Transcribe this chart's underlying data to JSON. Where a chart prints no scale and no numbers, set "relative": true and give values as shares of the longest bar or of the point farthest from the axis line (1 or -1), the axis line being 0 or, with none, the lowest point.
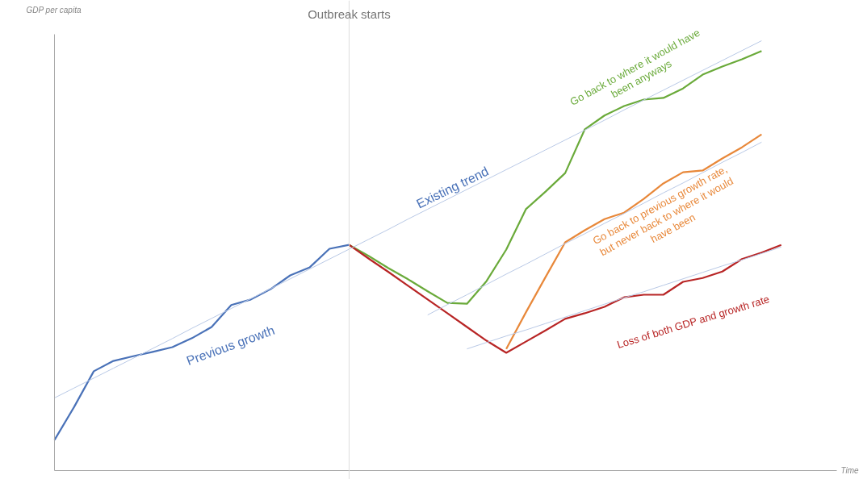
{
  "chart_data": {
    "type": "line",
    "relative": true,
    "xlabel": "Time",
    "ylabel": "GDP per capita",
    "grid": false,
    "marker": "none",
    "line_style": "solid",
    "categories": [
      null,
      null,
      null,
      null,
      null,
      null,
      null,
      null,
      null,
      null,
      null,
      null,
      null,
      null,
      null,
      null,
      null,
      null,
      null,
      null,
      null,
      null,
      null,
      null,
      null,
      null,
      null,
      null,
      null,
      null,
      null,
      null,
      null,
      null,
      null,
      null,
      null,
      null,
      null,
      null,
      null
    ],
    "series": [
      {
        "color": "#b9c9e6",
        "values": [
          0.169,
          0.192,
          0.215,
          0.238,
          0.261,
          0.284,
          0.307,
          0.331,
          0.354,
          0.377,
          0.4,
          0.423,
          0.446,
          0.469,
          0.492,
          0.515,
          0.538,
          0.561,
          0.585,
          0.608,
          0.631,
          0.654,
          0.677,
          0.7,
          0.723,
          0.746,
          0.769,
          0.792,
          0.815,
          0.839,
          0.862,
          0.885,
          0.908,
          0.931,
          0.954,
          0.977,
          1.0,
          null,
          null,
          null,
          null
        ]
      },
      {
        "color": "#b9c9e6",
        "values": [
          null,
          null,
          null,
          null,
          null,
          null,
          null,
          null,
          null,
          null,
          null,
          null,
          null,
          null,
          null,
          null,
          null,
          null,
          null,
          0.362,
          0.386,
          0.409,
          0.433,
          0.457,
          0.48,
          0.504,
          0.528,
          0.551,
          0.575,
          0.598,
          0.622,
          0.646,
          0.669,
          0.693,
          0.717,
          0.74,
          0.764,
          null,
          null,
          null,
          null
        ]
      },
      {
        "color": "#b9c9e6",
        "values": [
          null,
          null,
          null,
          null,
          null,
          null,
          null,
          null,
          null,
          null,
          null,
          null,
          null,
          null,
          null,
          null,
          null,
          null,
          null,
          null,
          null,
          0.283,
          0.298,
          0.313,
          0.327,
          0.342,
          0.357,
          0.372,
          0.387,
          0.402,
          0.416,
          0.431,
          0.446,
          0.461,
          0.476,
          0.49,
          0.505,
          0.52,
          null,
          null,
          null
        ]
      },
      {
        "color": "#4a72b8",
        "values": [
          0.071,
          0.148,
          0.231,
          0.255,
          0.266,
          0.276,
          0.287,
          0.308,
          0.334,
          0.385,
          0.398,
          0.422,
          0.454,
          0.473,
          0.516,
          0.525,
          null,
          null,
          null,
          null,
          null,
          null,
          null,
          null,
          null,
          null,
          null,
          null,
          null,
          null,
          null,
          null,
          null,
          null,
          null,
          null,
          null,
          null,
          null,
          null,
          null
        ]
      },
      {
        "color": "#6aaa3a",
        "values": [
          null,
          null,
          null,
          null,
          null,
          null,
          null,
          null,
          null,
          null,
          null,
          null,
          null,
          null,
          null,
          0.525,
          0.499,
          0.471,
          0.445,
          0.417,
          0.39,
          0.388,
          0.441,
          0.514,
          0.608,
          0.649,
          0.692,
          0.794,
          0.826,
          0.848,
          0.863,
          0.867,
          0.889,
          0.921,
          0.94,
          0.957,
          0.976,
          null,
          null,
          null,
          null
        ]
      },
      {
        "color": "#e8883a",
        "values": [
          null,
          null,
          null,
          null,
          null,
          null,
          null,
          null,
          null,
          null,
          null,
          null,
          null,
          null,
          null,
          null,
          null,
          null,
          null,
          null,
          null,
          null,
          null,
          0.283,
          0.368,
          0.45,
          0.531,
          0.559,
          0.585,
          0.6,
          0.632,
          0.668,
          0.694,
          0.698,
          0.726,
          0.752,
          0.782,
          null,
          null,
          null,
          null
        ]
      },
      {
        "color": "#b82525",
        "values": [
          null,
          null,
          null,
          null,
          null,
          null,
          null,
          null,
          null,
          null,
          null,
          null,
          null,
          null,
          null,
          0.525,
          0.493,
          0.462,
          0.43,
          0.398,
          0.366,
          0.334,
          0.302,
          0.274,
          0.3,
          0.326,
          0.353,
          0.366,
          0.381,
          0.403,
          0.409,
          0.409,
          0.439,
          0.448,
          0.463,
          0.492,
          0.507,
          0.525,
          null,
          null,
          null
        ]
      }
    ],
    "annotations": [
      "Outbreak starts",
      "Previous growth",
      "Existing trend",
      "Go back to where it would have\nbeen anyways",
      "Go back to previous growth rate,\nbut never back to where it would\nhave been",
      "Loss of  both GDP and growth rate"
    ]
  }
}
